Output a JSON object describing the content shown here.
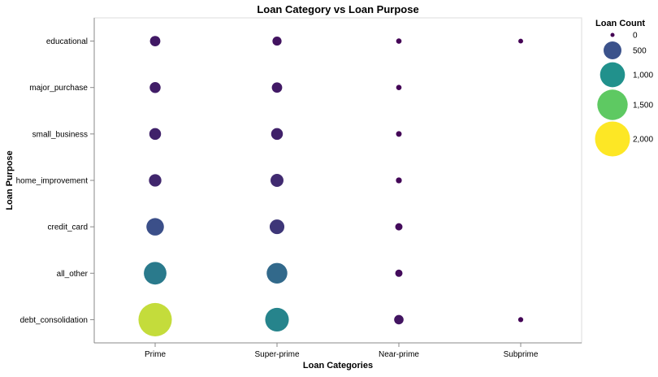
{
  "chart_data": {
    "type": "scatter",
    "title": "Loan Category vs Loan Purpose",
    "xlabel": "Loan Categories",
    "ylabel": "Loan Purpose",
    "x_categories": [
      "Prime",
      "Super-prime",
      "Near-prime",
      "Subprime"
    ],
    "y_categories": [
      "educational",
      "major_purchase",
      "small_business",
      "home_improvement",
      "credit_card",
      "all_other",
      "debt_consolidation"
    ],
    "size_range": [
      0,
      2200
    ],
    "points": [
      {
        "x": "Prime",
        "y": "educational",
        "count": 150
      },
      {
        "x": "Super-prime",
        "y": "educational",
        "count": 110
      },
      {
        "x": "Near-prime",
        "y": "educational",
        "count": 20
      },
      {
        "x": "Subprime",
        "y": "educational",
        "count": 10
      },
      {
        "x": "Prime",
        "y": "major_purchase",
        "count": 170
      },
      {
        "x": "Super-prime",
        "y": "major_purchase",
        "count": 150
      },
      {
        "x": "Near-prime",
        "y": "major_purchase",
        "count": 20
      },
      {
        "x": "Prime",
        "y": "small_business",
        "count": 200
      },
      {
        "x": "Super-prime",
        "y": "small_business",
        "count": 200
      },
      {
        "x": "Near-prime",
        "y": "small_business",
        "count": 25
      },
      {
        "x": "Prime",
        "y": "home_improvement",
        "count": 230
      },
      {
        "x": "Super-prime",
        "y": "home_improvement",
        "count": 250
      },
      {
        "x": "Near-prime",
        "y": "home_improvement",
        "count": 30
      },
      {
        "x": "Prime",
        "y": "credit_card",
        "count": 480
      },
      {
        "x": "Super-prime",
        "y": "credit_card",
        "count": 330
      },
      {
        "x": "Near-prime",
        "y": "credit_card",
        "count": 60
      },
      {
        "x": "Prime",
        "y": "all_other",
        "count": 820
      },
      {
        "x": "Super-prime",
        "y": "all_other",
        "count": 680
      },
      {
        "x": "Near-prime",
        "y": "all_other",
        "count": 60
      },
      {
        "x": "Prime",
        "y": "debt_consolidation",
        "count": 1820
      },
      {
        "x": "Super-prime",
        "y": "debt_consolidation",
        "count": 900
      },
      {
        "x": "Near-prime",
        "y": "debt_consolidation",
        "count": 120
      },
      {
        "x": "Subprime",
        "y": "debt_consolidation",
        "count": 15
      }
    ],
    "legend": {
      "title": "Loan Count",
      "position": "right",
      "entries": [
        {
          "label": "0",
          "value": 0
        },
        {
          "label": "500",
          "value": 500
        },
        {
          "label": "1,000",
          "value": 1000
        },
        {
          "label": "1,500",
          "value": 1500
        },
        {
          "label": "2,000",
          "value": 2000
        }
      ]
    },
    "colors": {
      "stops": [
        "#440154",
        "#3b528b",
        "#21918c",
        "#5ec962",
        "#fde725"
      ],
      "axis": "#888888",
      "frame": "#dddddd"
    }
  }
}
